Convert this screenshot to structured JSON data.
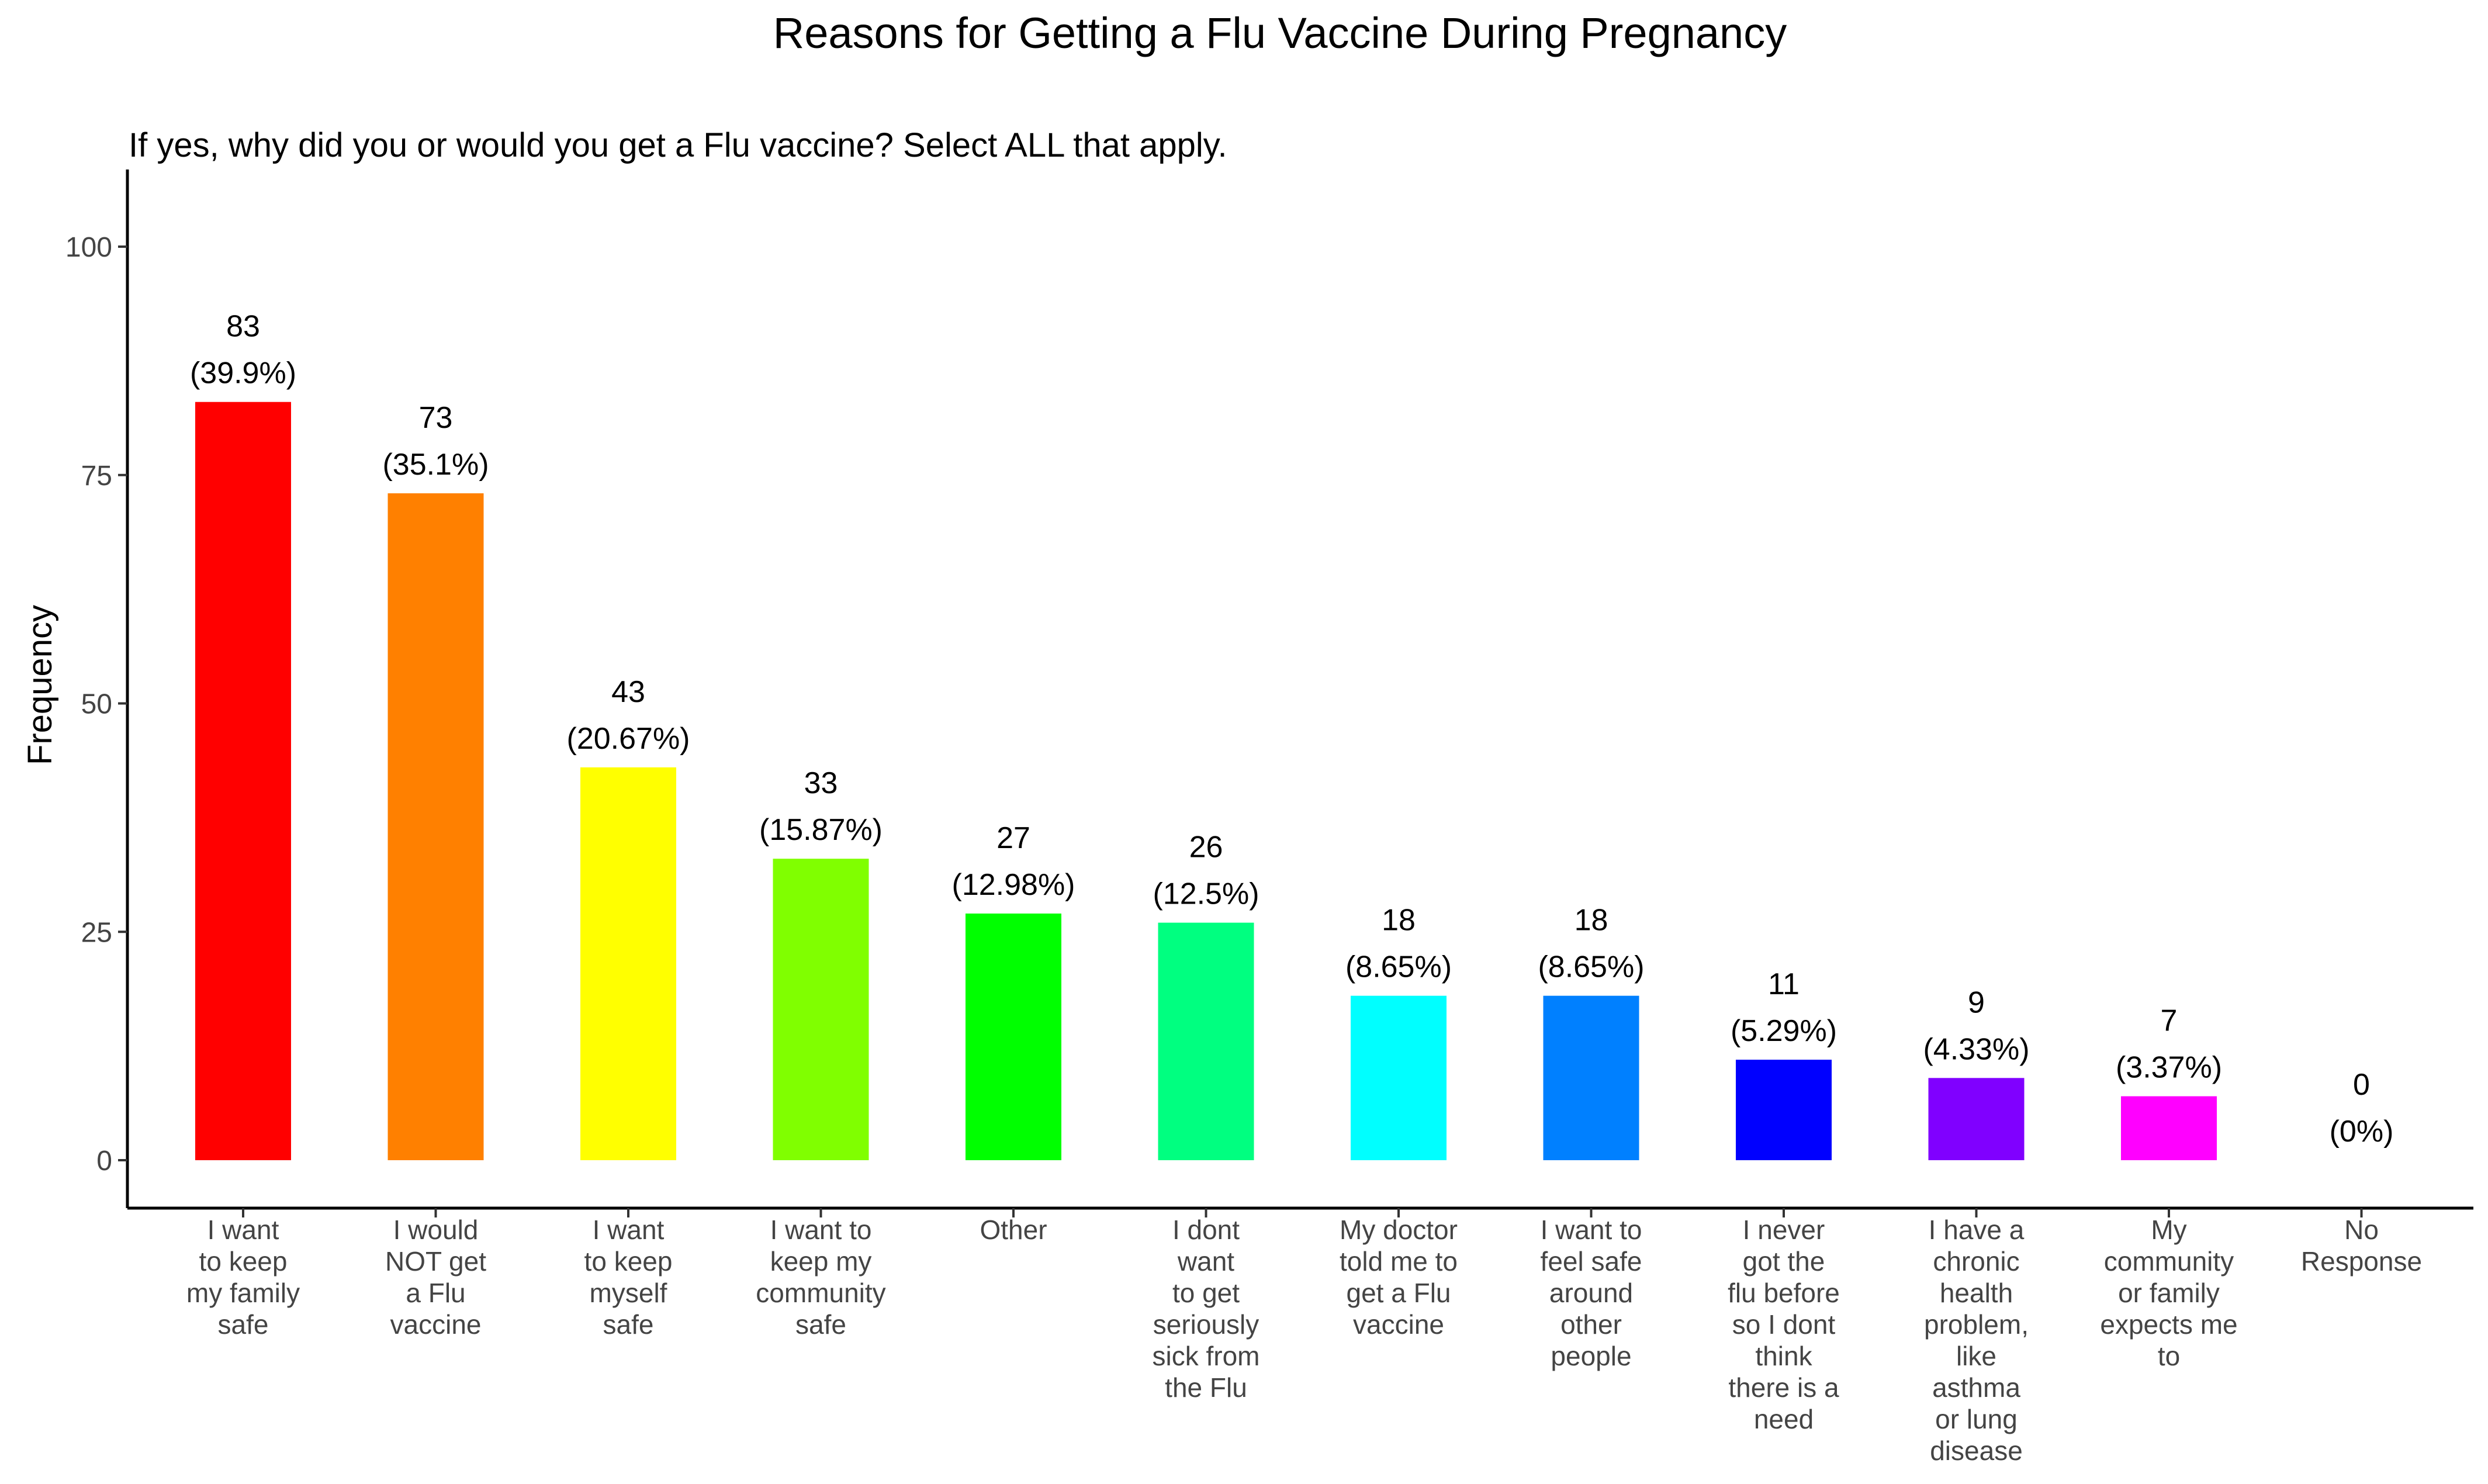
{
  "chart_data": {
    "type": "bar",
    "title": "Reasons for Getting a Flu Vaccine During Pregnancy",
    "subtitle": "If yes, why did you or would you get a Flu vaccine? Select ALL that apply.",
    "xlabel": "",
    "ylabel": "Frequency",
    "ylim": [
      0,
      108
    ],
    "yticks": [
      0,
      25,
      50,
      75,
      100
    ],
    "grid": false,
    "legend": "none",
    "categories": [
      [
        "I want",
        "to keep",
        "my family",
        "safe"
      ],
      [
        "I would",
        "NOT get",
        "a Flu",
        "vaccine"
      ],
      [
        "I want",
        "to keep",
        "myself",
        "safe"
      ],
      [
        "I want to",
        "keep my",
        "community",
        "safe"
      ],
      [
        "Other"
      ],
      [
        "I dont",
        "want",
        "to get",
        "seriously",
        "sick from",
        "the Flu"
      ],
      [
        "My doctor",
        "told me to",
        "get a Flu",
        "vaccine"
      ],
      [
        "I want to",
        "feel safe",
        "around",
        "other",
        "people"
      ],
      [
        "I never",
        "got the",
        "flu before",
        "so I dont",
        "think",
        "there is a",
        "need"
      ],
      [
        "I have a",
        "chronic",
        "health",
        "problem,",
        "like",
        "asthma",
        "or lung",
        "disease"
      ],
      [
        "My",
        "community",
        "or family",
        "expects me",
        "to"
      ],
      [
        "No",
        "Response"
      ]
    ],
    "values": [
      83,
      73,
      43,
      33,
      27,
      26,
      18,
      18,
      11,
      9,
      7,
      0
    ],
    "percent_labels": [
      "(39.9%)",
      "(35.1%)",
      "(20.67%)",
      "(15.87%)",
      "(12.98%)",
      "(12.5%)",
      "(8.65%)",
      "(8.65%)",
      "(5.29%)",
      "(4.33%)",
      "(3.37%)",
      "(0%)"
    ],
    "colors": [
      "#FF0000",
      "#FF8000",
      "#FFFF00",
      "#80FF00",
      "#00FF00",
      "#00FF80",
      "#00FFFF",
      "#0080FF",
      "#0000FF",
      "#8000FF",
      "#FF00FF",
      "#FF0080"
    ]
  }
}
